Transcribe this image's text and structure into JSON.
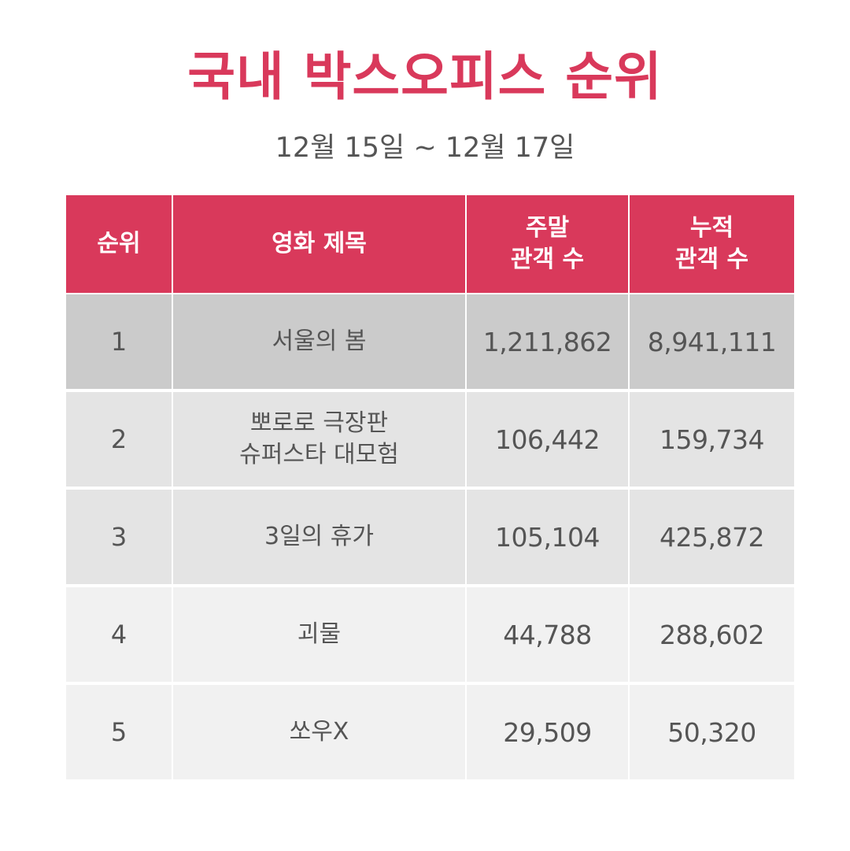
{
  "title": "국내 박스오피스 순위",
  "subtitle": "12월 15일 ~ 12월 17일",
  "colors": {
    "accent": "#D9395B",
    "row_bg": [
      "#CBCBCB",
      "#E4E4E4",
      "#E4E4E4",
      "#F1F1F1",
      "#F1F1F1"
    ],
    "text": "#555555"
  },
  "headers": {
    "rank": "순위",
    "title": "영화 제목",
    "weekend": [
      "주말",
      "관객 수"
    ],
    "total": [
      "누적",
      "관객 수"
    ]
  },
  "rows": [
    {
      "rank": "1",
      "title": [
        "서울의 봄"
      ],
      "weekend": "1,211,862",
      "total": "8,941,111"
    },
    {
      "rank": "2",
      "title": [
        "뽀로로 극장판",
        "슈퍼스타 대모험"
      ],
      "weekend": "106,442",
      "total": "159,734"
    },
    {
      "rank": "3",
      "title": [
        "3일의 휴가"
      ],
      "weekend": "105,104",
      "total": "425,872"
    },
    {
      "rank": "4",
      "title": [
        "괴물"
      ],
      "weekend": "44,788",
      "total": "288,602"
    },
    {
      "rank": "5",
      "title": [
        "쏘우X"
      ],
      "weekend": "29,509",
      "total": "50,320"
    }
  ]
}
